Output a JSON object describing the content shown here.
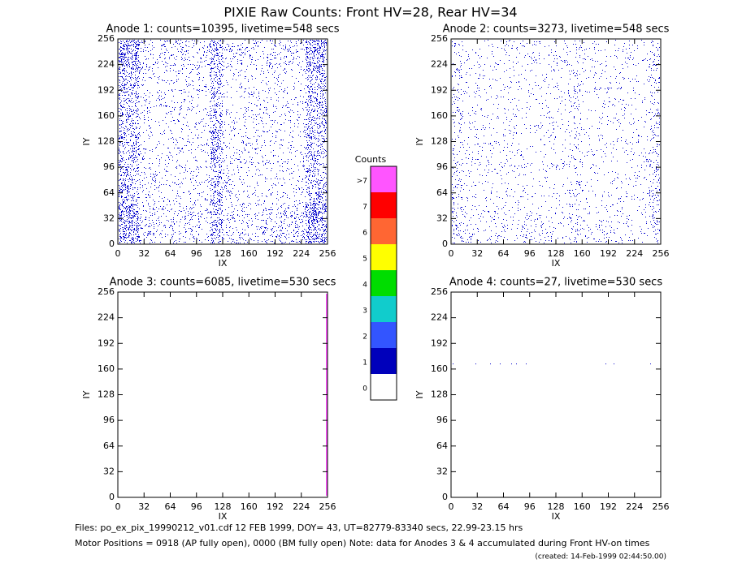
{
  "title": "PIXIE Raw Counts:  Front HV=28, Rear HV=34",
  "chart_data": [
    {
      "type": "heatmap",
      "title": "Anode 1: counts=10395, livetime=548 secs",
      "x_label": "IX",
      "y_label": "IY",
      "xlim": [
        0,
        256
      ],
      "ylim": [
        0,
        256
      ],
      "xticks": [
        0,
        32,
        64,
        96,
        128,
        160,
        192,
        224,
        256
      ],
      "yticks": [
        0,
        32,
        64,
        96,
        128,
        160,
        192,
        224,
        256
      ]
    },
    {
      "type": "heatmap",
      "title": "Anode 2: counts=3273, livetime=548 secs",
      "x_label": "IX",
      "y_label": "IY",
      "xlim": [
        0,
        256
      ],
      "ylim": [
        0,
        256
      ],
      "xticks": [
        0,
        32,
        64,
        96,
        128,
        160,
        192,
        224,
        256
      ],
      "yticks": [
        0,
        32,
        64,
        96,
        128,
        160,
        192,
        224,
        256
      ]
    },
    {
      "type": "heatmap",
      "title": "Anode 3: counts=6085, livetime=530 secs",
      "x_label": "IX",
      "y_label": "IY",
      "xlim": [
        0,
        256
      ],
      "ylim": [
        0,
        256
      ],
      "xticks": [
        0,
        32,
        64,
        96,
        128,
        160,
        192,
        224,
        256
      ],
      "yticks": [
        0,
        32,
        64,
        96,
        128,
        160,
        192,
        224,
        256
      ]
    },
    {
      "type": "heatmap",
      "title": "Anode 4: counts=27, livetime=530 secs",
      "x_label": "IX",
      "y_label": "IY",
      "xlim": [
        0,
        256
      ],
      "ylim": [
        0,
        256
      ],
      "xticks": [
        0,
        32,
        64,
        96,
        128,
        160,
        192,
        224,
        256
      ],
      "yticks": [
        0,
        32,
        64,
        96,
        128,
        160,
        192,
        224,
        256
      ]
    }
  ],
  "colorbar": {
    "title": "Counts",
    "labels": [
      ">7",
      "7",
      "6",
      "5",
      "4",
      "3",
      "2",
      "1",
      "0"
    ],
    "colors": [
      "#ff55ff",
      "#ff0000",
      "#ff6633",
      "#ffff00",
      "#00dd00",
      "#11cccc",
      "#3355ff",
      "#0000bb",
      "#ffffff"
    ]
  },
  "footer": {
    "files": "Files: po_ex_pix_19990212_v01.cdf    12 FEB 1999, DOY= 43, UT=82779-83340 secs, 22.99-23.15 hrs",
    "motor": "Motor Positions = 0918 (AP fully open), 0000 (BM fully open)    Note: data for Anodes 3 & 4 accumulated during Front HV-on times",
    "created": "(created: 14-Feb-1999 02:44:50.00)"
  }
}
